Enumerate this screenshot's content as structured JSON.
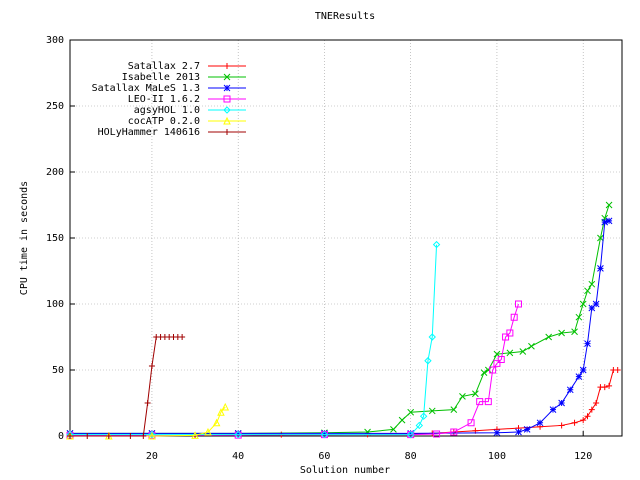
{
  "chart_data": {
    "type": "line",
    "title": "TNEResults",
    "x_label": "Solution number",
    "y_label": "CPU time in seconds",
    "xlim": [
      1,
      129
    ],
    "ylim": [
      0,
      300
    ],
    "xticks": [
      20,
      40,
      60,
      80,
      100,
      120
    ],
    "yticks": [
      0,
      50,
      100,
      150,
      200,
      250,
      300
    ],
    "grid": true,
    "legend": "top-left",
    "series": [
      {
        "name": "Satallax 2.7",
        "color": "#ff0000",
        "x": [
          1,
          10,
          20,
          30,
          40,
          50,
          60,
          70,
          80,
          85,
          90,
          95,
          100,
          105,
          110,
          115,
          118,
          120,
          121,
          122,
          123,
          124,
          125,
          126,
          127,
          128
        ],
        "values": [
          0.5,
          0.6,
          0.7,
          0.8,
          0.9,
          1,
          1,
          1.2,
          1.5,
          2,
          3,
          4,
          5,
          6,
          7,
          8,
          10,
          12,
          15,
          20,
          25,
          37,
          37,
          38,
          50,
          50
        ]
      },
      {
        "name": "Isabelle 2013",
        "color": "#00c000",
        "x": [
          1,
          20,
          40,
          60,
          70,
          76,
          78,
          80,
          85,
          90,
          92,
          95,
          97,
          98,
          100,
          103,
          106,
          108,
          112,
          115,
          118,
          119,
          120,
          121,
          122,
          124,
          125,
          126
        ],
        "values": [
          2,
          2,
          2,
          2.5,
          3,
          5,
          12,
          18,
          19,
          20,
          30,
          32,
          48,
          50,
          62,
          63,
          64,
          68,
          75,
          78,
          79,
          90,
          100,
          110,
          115,
          150,
          165,
          175
        ]
      },
      {
        "name": "Satallax MaLeS 1.3",
        "color": "#0000ff",
        "x": [
          1,
          20,
          40,
          60,
          80,
          100,
          105,
          107,
          110,
          113,
          115,
          117,
          119,
          120,
          121,
          122,
          123,
          124,
          125,
          126
        ],
        "values": [
          2,
          2,
          2,
          2,
          2,
          2.5,
          3,
          5,
          10,
          20,
          25,
          35,
          45,
          50,
          70,
          97,
          100,
          127,
          162,
          163
        ]
      },
      {
        "name": "LEO-II 1.6.2",
        "color": "#ff00ff",
        "x": [
          1,
          20,
          40,
          60,
          80,
          86,
          90,
          94,
          96,
          98,
          99,
          100,
          101,
          102,
          103,
          104,
          105
        ],
        "values": [
          0.5,
          0.5,
          0.7,
          1,
          1,
          1.5,
          3,
          10,
          26,
          26,
          50,
          55,
          58,
          75,
          78,
          90,
          100
        ]
      },
      {
        "name": "agsyHOL 1.0",
        "color": "#00ffff",
        "x": [
          1,
          20,
          40,
          60,
          80,
          82,
          83,
          84,
          85,
          86
        ],
        "values": [
          1,
          1,
          1,
          1,
          1,
          8,
          15,
          57,
          75,
          145
        ]
      },
      {
        "name": "cocATP 0.2.0",
        "color": "#ffff00",
        "x": [
          1,
          10,
          20,
          30,
          33,
          35,
          36,
          37
        ],
        "values": [
          0,
          0,
          0,
          0.5,
          3,
          10,
          18,
          22
        ]
      },
      {
        "name": "HOLyHammer 140616",
        "color": "#a00000",
        "x": [
          1,
          5,
          10,
          15,
          18,
          19,
          20,
          21,
          22,
          23,
          24,
          25,
          26,
          27
        ],
        "values": [
          0,
          0,
          0,
          0,
          0,
          25,
          53,
          75,
          75,
          75,
          75,
          75,
          75,
          75
        ]
      }
    ]
  }
}
